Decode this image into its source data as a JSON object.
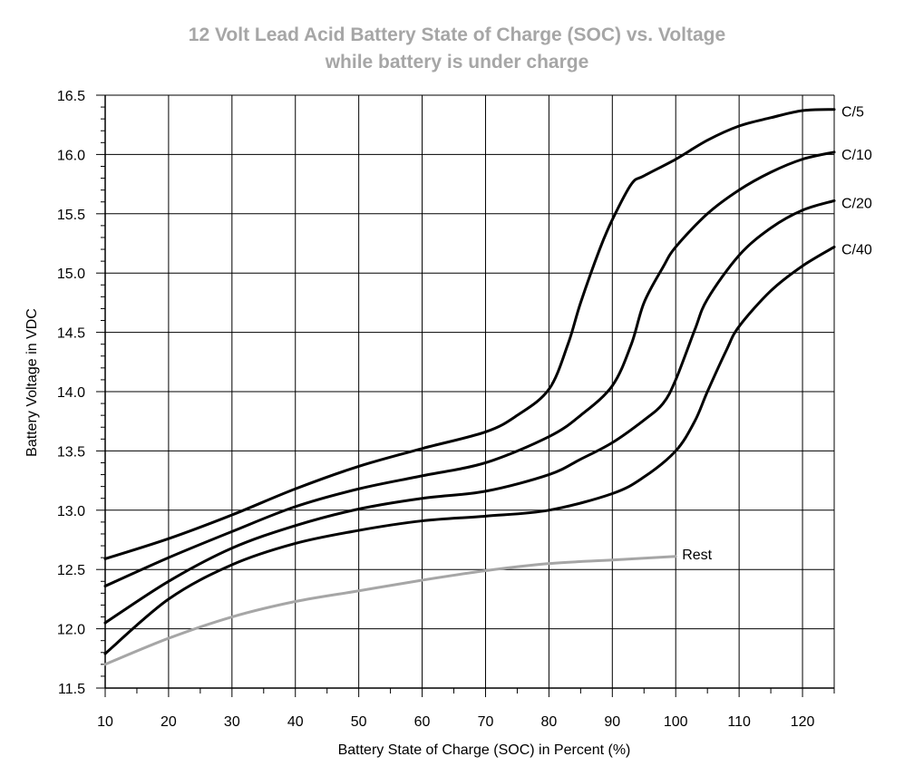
{
  "chart_data": {
    "type": "line",
    "title": "12 Volt Lead Acid Battery State of Charge (SOC) vs. Voltage",
    "subtitle": "while battery is under charge",
    "xlabel": "Battery State of Charge (SOC) in Percent (%)",
    "ylabel": "Battery Voltage in VDC",
    "xlim": [
      10,
      125
    ],
    "ylim": [
      11.5,
      16.5
    ],
    "x_ticks": [
      "10",
      "20",
      "30",
      "40",
      "50",
      "60",
      "70",
      "80",
      "90",
      "100",
      "110",
      "120"
    ],
    "y_ticks": [
      "11.5",
      "12.0",
      "12.5",
      "13.0",
      "13.5",
      "14.0",
      "14.5",
      "15.0",
      "15.5",
      "16.0",
      "16.5"
    ],
    "grid": true,
    "series": [
      {
        "name": "C/5",
        "color": "#000000",
        "x": [
          10,
          20,
          30,
          40,
          50,
          60,
          70,
          75,
          80,
          83,
          85,
          88,
          90,
          93,
          95,
          100,
          105,
          110,
          115,
          120,
          125
        ],
        "y": [
          12.59,
          12.76,
          12.96,
          13.18,
          13.37,
          13.52,
          13.66,
          13.8,
          14.02,
          14.4,
          14.75,
          15.2,
          15.45,
          15.75,
          15.82,
          15.96,
          16.12,
          16.24,
          16.31,
          16.37,
          16.38
        ]
      },
      {
        "name": "C/10",
        "color": "#000000",
        "x": [
          10,
          20,
          30,
          40,
          50,
          60,
          70,
          80,
          85,
          90,
          93,
          95,
          98,
          100,
          105,
          110,
          115,
          120,
          125
        ],
        "y": [
          12.36,
          12.6,
          12.82,
          13.03,
          13.18,
          13.29,
          13.4,
          13.62,
          13.8,
          14.05,
          14.4,
          14.75,
          15.05,
          15.22,
          15.5,
          15.7,
          15.85,
          15.96,
          16.02
        ]
      },
      {
        "name": "C/20",
        "color": "#000000",
        "x": [
          10,
          20,
          30,
          40,
          50,
          60,
          70,
          80,
          85,
          90,
          95,
          98,
          100,
          103,
          105,
          110,
          115,
          120,
          125
        ],
        "y": [
          12.05,
          12.4,
          12.68,
          12.87,
          13.01,
          13.1,
          13.16,
          13.3,
          13.43,
          13.57,
          13.76,
          13.9,
          14.1,
          14.52,
          14.78,
          15.15,
          15.38,
          15.53,
          15.61
        ]
      },
      {
        "name": "C/40",
        "color": "#000000",
        "x": [
          10,
          20,
          30,
          40,
          50,
          60,
          70,
          80,
          90,
          95,
          100,
          103,
          105,
          108,
          110,
          115,
          120,
          125
        ],
        "y": [
          11.79,
          12.25,
          12.54,
          12.72,
          12.83,
          12.91,
          12.95,
          13.0,
          13.14,
          13.28,
          13.5,
          13.75,
          14.0,
          14.35,
          14.55,
          14.85,
          15.06,
          15.22
        ]
      },
      {
        "name": "Rest",
        "color": "#a6a6a6",
        "x": [
          10,
          20,
          30,
          40,
          50,
          60,
          70,
          80,
          90,
          100
        ],
        "y": [
          11.7,
          11.92,
          12.1,
          12.23,
          12.32,
          12.41,
          12.49,
          12.55,
          12.58,
          12.61
        ]
      }
    ]
  }
}
